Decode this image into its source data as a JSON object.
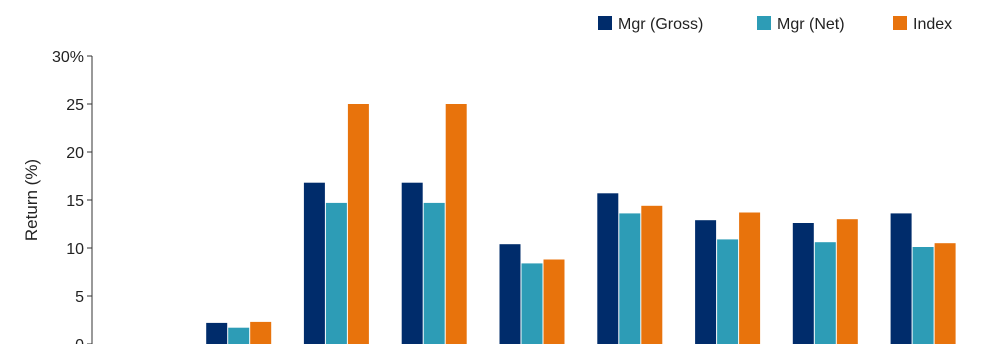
{
  "chart_data": {
    "type": "bar",
    "ylabel": "Return (%)",
    "ylim": [
      0,
      30
    ],
    "yticks": [
      0,
      5,
      10,
      15,
      20,
      25,
      30
    ],
    "ytick_labels": [
      "0",
      "5",
      "10",
      "15",
      "20",
      "25",
      "30%"
    ],
    "categories": [
      "",
      "",
      "",
      "",
      "",
      "",
      "",
      "",
      ""
    ],
    "series": [
      {
        "name": "Mgr (Gross)",
        "color": "#002c6b",
        "values": [
          null,
          2.2,
          16.8,
          16.8,
          10.4,
          15.7,
          12.9,
          12.6,
          13.6
        ]
      },
      {
        "name": "Mgr (Net)",
        "color": "#2d9cb6",
        "values": [
          null,
          1.7,
          14.7,
          14.7,
          8.4,
          13.6,
          10.9,
          10.6,
          10.1
        ]
      },
      {
        "name": "Index",
        "color": "#e8730c",
        "values": [
          null,
          2.3,
          25.0,
          25.0,
          8.8,
          14.4,
          13.7,
          13.0,
          10.5
        ]
      }
    ],
    "legend_position": "top-right",
    "grid": false
  }
}
